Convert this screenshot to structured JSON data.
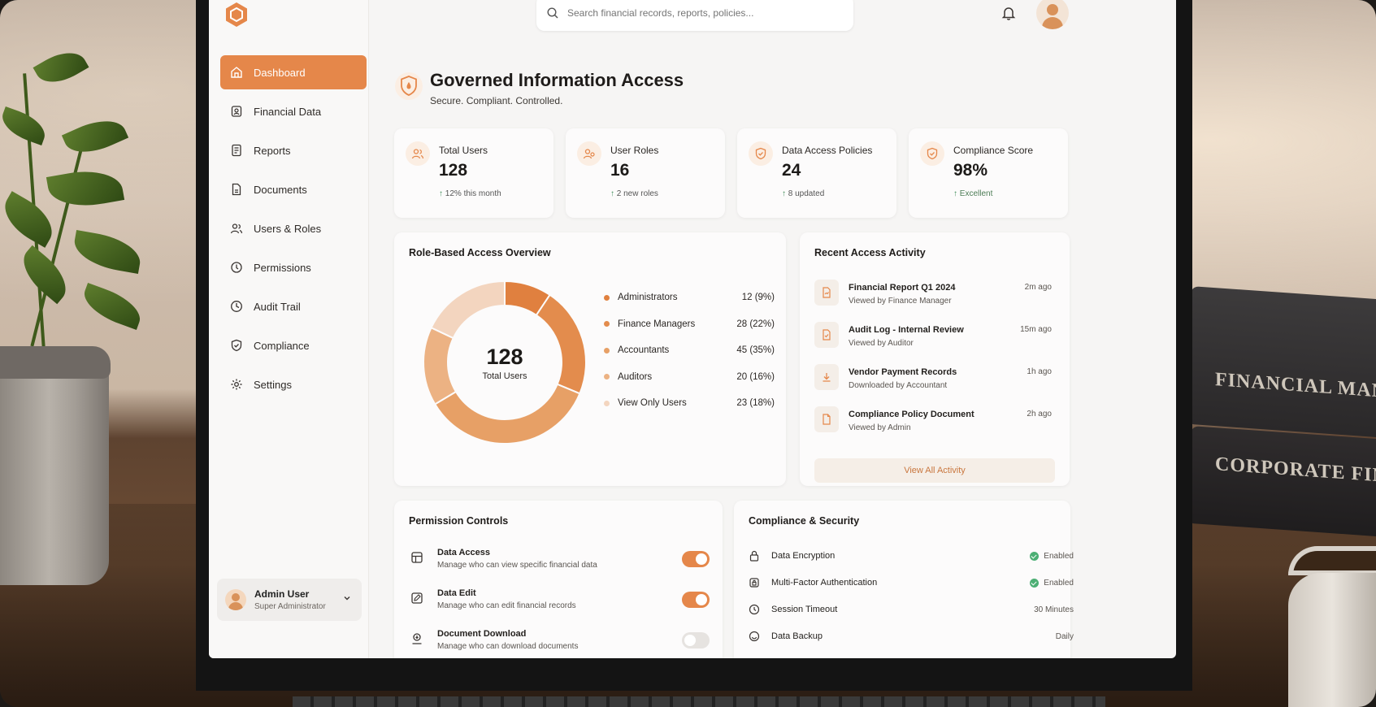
{
  "scene": {
    "book_titles": [
      "FINANCIAL MANAGEM",
      "CORPORATE FINANC"
    ]
  },
  "search": {
    "placeholder": "Search financial records, reports, policies..."
  },
  "nav": {
    "items": [
      {
        "label": "Dashboard",
        "icon": "home-icon",
        "active": true
      },
      {
        "label": "Financial Data",
        "icon": "financial-data-icon"
      },
      {
        "label": "Reports",
        "icon": "report-icon"
      },
      {
        "label": "Documents",
        "icon": "document-icon"
      },
      {
        "label": "Users & Roles",
        "icon": "users-icon"
      },
      {
        "label": "Permissions",
        "icon": "permissions-icon"
      },
      {
        "label": "Audit Trail",
        "icon": "clock-icon"
      },
      {
        "label": "Compliance",
        "icon": "shield-icon"
      },
      {
        "label": "Settings",
        "icon": "gear-icon"
      }
    ]
  },
  "user": {
    "name": "Admin User",
    "role": "Super Administrator"
  },
  "header": {
    "title": "Governed Information Access",
    "subtitle": "Secure. Compliant. Controlled."
  },
  "stats": [
    {
      "label": "Total Users",
      "value": "128",
      "delta": "12% this month",
      "icon": "users-icon"
    },
    {
      "label": "User Roles",
      "value": "16",
      "delta": "2 new roles",
      "icon": "user-roles-icon"
    },
    {
      "label": "Data Access Policies",
      "value": "24",
      "delta": "8 updated",
      "icon": "shield-check-icon"
    },
    {
      "label": "Compliance Score",
      "value": "98%",
      "delta": "Excellent",
      "icon": "shield-check-icon"
    }
  ],
  "overview": {
    "title": "Role-Based Access Overview",
    "center_value": "128",
    "center_label": "Total Users"
  },
  "chart_data": {
    "type": "pie",
    "title": "Role-Based Access Overview",
    "categories": [
      "Administrators",
      "Finance Managers",
      "Accountants",
      "Auditors",
      "View Only Users"
    ],
    "values": [
      12,
      28,
      45,
      20,
      23
    ],
    "value_labels": [
      "12 (9%)",
      "28 (22%)",
      "45 (35%)",
      "20 (16%)",
      "23 (18%)"
    ],
    "colors": [
      "#e0803f",
      "#e38c4d",
      "#e7a066",
      "#ecb283",
      "#f3d5bf"
    ],
    "legend": "right"
  },
  "activity": {
    "title": "Recent Access Activity",
    "items": [
      {
        "title": "Financial Report Q1 2024",
        "sub": "Viewed by Finance Manager",
        "time": "2m ago",
        "icon": "report-icon"
      },
      {
        "title": "Audit Log - Internal Review",
        "sub": "Viewed by Auditor",
        "time": "15m ago",
        "icon": "audit-doc-icon"
      },
      {
        "title": "Vendor Payment Records",
        "sub": "Downloaded by Accountant",
        "time": "1h ago",
        "icon": "download-icon"
      },
      {
        "title": "Compliance Policy Document",
        "sub": "Viewed by Admin",
        "time": "2h ago",
        "icon": "document-icon"
      }
    ],
    "view_all": "View All Activity"
  },
  "permissions": {
    "title": "Permission Controls",
    "items": [
      {
        "title": "Data Access",
        "sub": "Manage who can view specific financial data",
        "enabled": true,
        "icon": "database-icon"
      },
      {
        "title": "Data Edit",
        "sub": "Manage who can edit financial records",
        "enabled": true,
        "icon": "edit-icon"
      },
      {
        "title": "Document Download",
        "sub": "Manage who can download documents",
        "enabled": false,
        "icon": "download-icon"
      }
    ]
  },
  "compliance": {
    "title": "Compliance & Security",
    "items": [
      {
        "label": "Data Encryption",
        "value": "Enabled",
        "status": "ok",
        "icon": "lock-icon"
      },
      {
        "label": "Multi-Factor Authentication",
        "value": "Enabled",
        "status": "ok",
        "icon": "mfa-icon"
      },
      {
        "label": "Session Timeout",
        "value": "30 Minutes",
        "icon": "clock-icon"
      },
      {
        "label": "Data Backup",
        "value": "Daily",
        "icon": "backup-icon"
      }
    ]
  },
  "colors": {
    "accent": "#e5874a",
    "success": "#4caf74"
  }
}
